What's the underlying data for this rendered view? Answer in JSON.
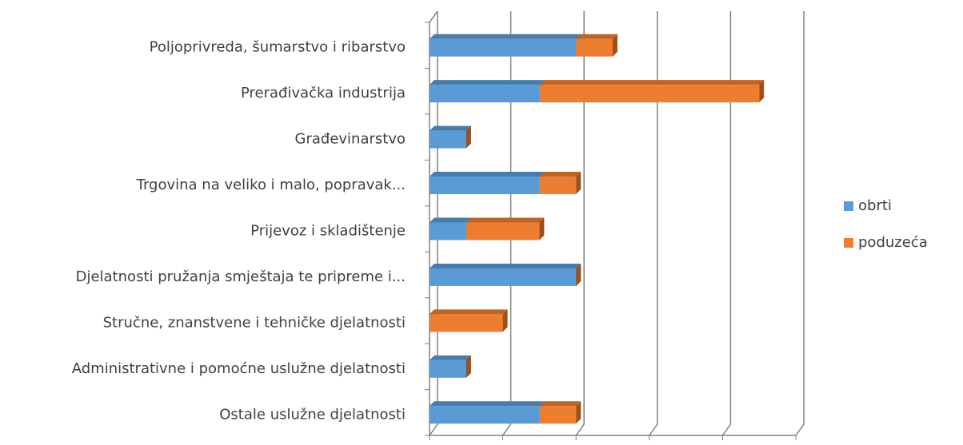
{
  "chart_data": {
    "type": "bar",
    "orientation": "horizontal",
    "stacked": true,
    "categories": [
      "Poljoprivreda, šumarstvo i ribarstvo",
      "Prerađivačka industrija",
      "Građevinarstvo",
      "Trgovina na veliko i malo, popravak...",
      "Prijevoz i skladištenje",
      "Djelatnosti pružanja smještaja te pripreme i...",
      "Stručne, znanstvene i tehničke djelatnosti",
      "Administrativne i pomoćne uslužne djelatnosti",
      "Ostale uslužne djelatnosti"
    ],
    "series": [
      {
        "name": "obrti",
        "color": "#5b9bd5",
        "values": [
          4,
          3,
          1,
          3,
          1,
          4,
          0,
          1,
          3
        ]
      },
      {
        "name": "poduzeća",
        "color": "#ed7d31",
        "values": [
          1,
          6,
          0,
          1,
          2,
          0,
          2,
          0,
          1
        ]
      }
    ],
    "xlim": [
      0,
      10
    ],
    "xticks": [
      0,
      2,
      4,
      6,
      8,
      10
    ],
    "grid": true,
    "legend": "right"
  }
}
